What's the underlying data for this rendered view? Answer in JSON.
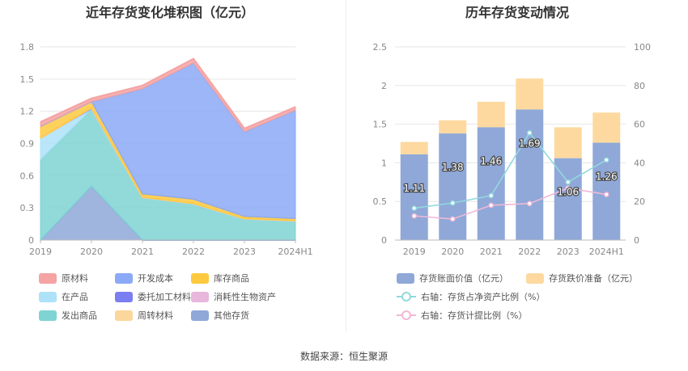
{
  "source": "数据来源：恒生聚源",
  "charts": {
    "left_title": "近年存货变化堆积图（亿元）",
    "right_title": "历年存货变动情况"
  },
  "chart_data": [
    {
      "type": "area",
      "title": "近年存货变化堆积图（亿元）",
      "categories": [
        "2019",
        "2020",
        "2021",
        "2022",
        "2023",
        "2024H1"
      ],
      "ylim": [
        0,
        1.8
      ],
      "yticks": [
        "0",
        "0.3",
        "0.6",
        "0.9",
        "1.2",
        "1.5",
        "1.8"
      ],
      "grid": true,
      "legend_position": "bottom",
      "series": [
        {
          "name": "其他存货",
          "color": "#8fa8d8",
          "values": [
            0,
            0.5,
            0,
            0,
            0,
            0
          ]
        },
        {
          "name": "发出商品",
          "color": "#7fd3d3",
          "values": [
            0.75,
            0.72,
            0.4,
            0.34,
            0.2,
            0.18
          ]
        },
        {
          "name": "在产品",
          "color": "#aee2f8",
          "values": [
            0.2,
            0,
            0,
            0,
            0,
            0
          ]
        },
        {
          "name": "委托加工材料",
          "color": "#7b7ef0",
          "values": [
            0,
            0.01,
            0,
            0,
            0,
            0
          ]
        },
        {
          "name": "消耗性生物资产",
          "color": "#e9b6dc",
          "values": [
            0,
            0,
            0,
            0,
            0,
            0
          ]
        },
        {
          "name": "周转材料",
          "color": "#fcd79b",
          "values": [
            0,
            0,
            0,
            0,
            0,
            0
          ]
        },
        {
          "name": "库存商品",
          "color": "#fdc93f",
          "values": [
            0.11,
            0.06,
            0.03,
            0.04,
            0.02,
            0.02
          ]
        },
        {
          "name": "开发成本",
          "color": "#8ba9f6",
          "values": [
            0,
            0,
            0.98,
            1.27,
            0.79,
            1.01
          ]
        },
        {
          "name": "原材料",
          "color": "#f5a3a3",
          "values": [
            0.04,
            0.03,
            0.03,
            0.04,
            0.03,
            0.03
          ]
        }
      ],
      "legend_order": [
        "原材料",
        "开发成本",
        "库存商品",
        "在产品",
        "委托加工材料",
        "消耗性生物资产",
        "发出商品",
        "周转材料",
        "其他存货"
      ]
    },
    {
      "type": "bar",
      "title": "历年存货变动情况",
      "categories": [
        "2019",
        "2020",
        "2021",
        "2022",
        "2023",
        "2024H1"
      ],
      "ylim": [
        0,
        2.5
      ],
      "yticks": [
        "0",
        "0.5",
        "1",
        "1.5",
        "2",
        "2.5"
      ],
      "y2lim": [
        0,
        100
      ],
      "y2ticks": [
        "0",
        "20",
        "40",
        "60",
        "80",
        "100"
      ],
      "grid": true,
      "legend_position": "bottom",
      "series": [
        {
          "name": "存货账面价值（亿元）",
          "color": "#8fa8d8",
          "values": [
            1.11,
            1.38,
            1.46,
            1.69,
            1.06,
            1.26
          ],
          "labels": [
            "1.11",
            "1.38",
            "1.46",
            "1.69",
            "1.06",
            "1.26"
          ]
        },
        {
          "name": "存货跌价准备（亿元）",
          "color": "#fdd9a0",
          "values": [
            0.16,
            0.17,
            0.33,
            0.4,
            0.4,
            0.39
          ]
        },
        {
          "name": "右轴：存货占净资产比例（%）",
          "color": "#92d8de",
          "axis": "right",
          "values": [
            16.5,
            19.2,
            23.0,
            55.5,
            30.0,
            41.5
          ]
        },
        {
          "name": "右轴：存货计提比例（%）",
          "color": "#f0b8d6",
          "axis": "right",
          "values": [
            12.5,
            10.9,
            18.0,
            18.9,
            26.9,
            23.6
          ]
        }
      ]
    }
  ]
}
